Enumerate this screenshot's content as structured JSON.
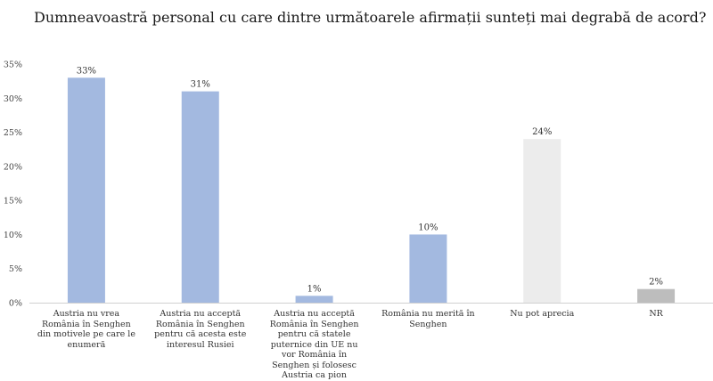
{
  "title": "Dumneavoastră personal cu care dintre următoarele afirmații sunteți mai degrabă de acord?",
  "chart_data": {
    "type": "bar",
    "title": "Dumneavoastră personal cu care dintre următoarele afirmații sunteți mai degrabă de acord?",
    "xlabel": "",
    "ylabel": "",
    "ylim": [
      0,
      35
    ],
    "yticks": [
      "0%",
      "5%",
      "10%",
      "15%",
      "20%",
      "25%",
      "30%",
      "35%"
    ],
    "grid": false,
    "categories": [
      "Austria nu vrea România în Senghen din motivele pe care le enumeră",
      "Austria nu acceptă România în Senghen pentru că acesta este interesul Rusiei",
      "Austria nu acceptă România în Senghen pentru că statele puternice din UE nu vor România în Senghen și folosesc Austria ca pion",
      "România nu merită în Senghen",
      "Nu pot aprecia",
      "NR"
    ],
    "values": [
      33,
      31,
      1,
      10,
      24,
      2
    ],
    "data_labels": [
      "33%",
      "31%",
      "1%",
      "10%",
      "24%",
      "2%"
    ],
    "colors": [
      "#a3b9e0",
      "#a3b9e0",
      "#a3b9e0",
      "#a3b9e0",
      "#ececec",
      "#bdbdbd"
    ]
  }
}
